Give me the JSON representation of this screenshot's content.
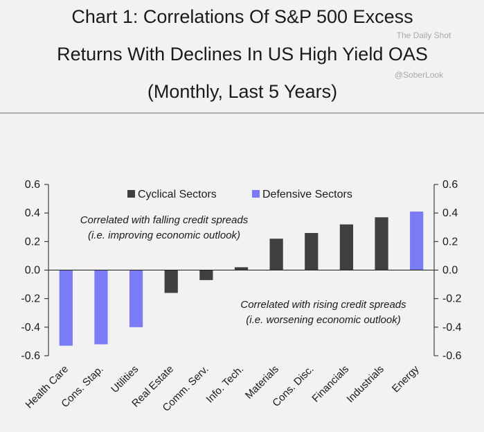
{
  "chart_data": {
    "type": "bar",
    "title_lines": [
      "Chart 1: Correlations Of S&P 500 Excess",
      "Returns With Declines In US High Yield OAS",
      "(Monthly, Last 5 Years)"
    ],
    "watermark_lines": [
      "The Daily Shot",
      "@SoberLook"
    ],
    "categories": [
      "Health Care",
      "Cons. Stap.",
      "Utilities",
      "Real Estate",
      "Comm. Serv.",
      "Info. Tech.",
      "Materials",
      "Cons. Disc.",
      "Financials",
      "Industrials",
      "Energy"
    ],
    "values": [
      -0.53,
      -0.52,
      -0.4,
      -0.16,
      -0.07,
      0.02,
      0.22,
      0.26,
      0.32,
      0.37,
      0.41
    ],
    "groups": [
      "defensive",
      "defensive",
      "defensive",
      "cyclical",
      "cyclical",
      "cyclical",
      "cyclical",
      "cyclical",
      "cyclical",
      "cyclical",
      "defensive"
    ],
    "legend": [
      {
        "key": "cyclical",
        "label": "Cyclical Sectors",
        "color": "#404040"
      },
      {
        "key": "defensive",
        "label": "Defensive Sectors",
        "color": "#7b7bf5"
      }
    ],
    "legend_position": "top",
    "ylim": [
      -0.6,
      0.6
    ],
    "ytick_values": [
      0.6,
      0.4,
      0.2,
      0.0,
      -0.2,
      -0.4,
      -0.6
    ],
    "ytick_labels": [
      "0.6",
      "0.4",
      "0.2",
      "0.0",
      "-0.2",
      "-0.4",
      "-0.6"
    ],
    "grid": false,
    "secondary_y_axis": true,
    "annotations": [
      {
        "lines": [
          "Correlated with falling credit spreads",
          "(i.e. improving economic outlook)"
        ]
      },
      {
        "lines": [
          "Correlated with rising credit spreads",
          "(i.e. worsening economic outlook)"
        ]
      }
    ]
  }
}
